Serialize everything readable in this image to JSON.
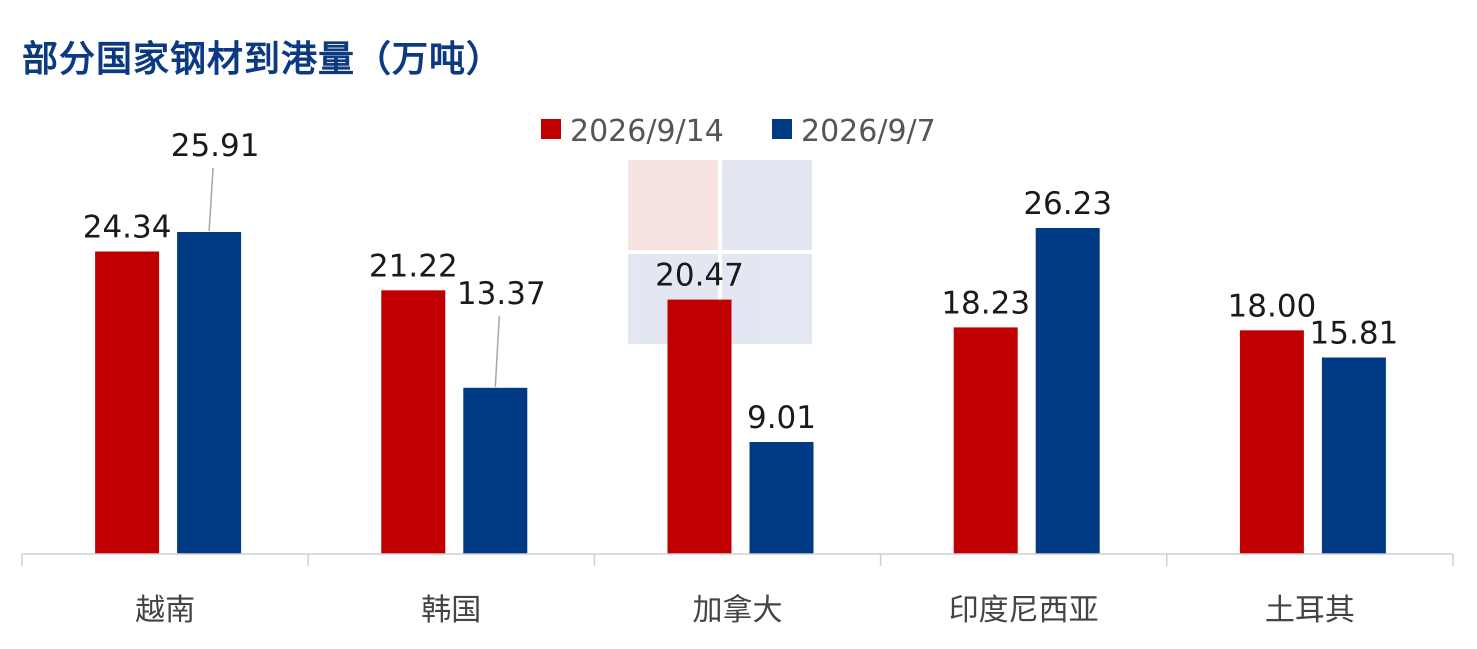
{
  "chart_data": {
    "type": "bar",
    "title": "部分国家钢材到港量（万吨）",
    "categories": [
      "越南",
      "韩国",
      "加拿大",
      "印度尼西亚",
      "土耳其"
    ],
    "series": [
      {
        "name": "2026/9/14",
        "color": "#c00000",
        "values": [
          24.34,
          21.22,
          20.47,
          18.23,
          18.0
        ]
      },
      {
        "name": "2026/9/7",
        "color": "#003a85",
        "values": [
          25.91,
          13.37,
          9.01,
          26.23,
          15.81
        ]
      }
    ],
    "value_labels": [
      [
        "24.34",
        "21.22",
        "20.47",
        "18.23",
        "18.00"
      ],
      [
        "25.91",
        "13.37",
        "9.01",
        "26.23",
        "15.81"
      ]
    ],
    "ylim": [
      0,
      26.23
    ],
    "legend_position": "top-center",
    "grid": false
  }
}
